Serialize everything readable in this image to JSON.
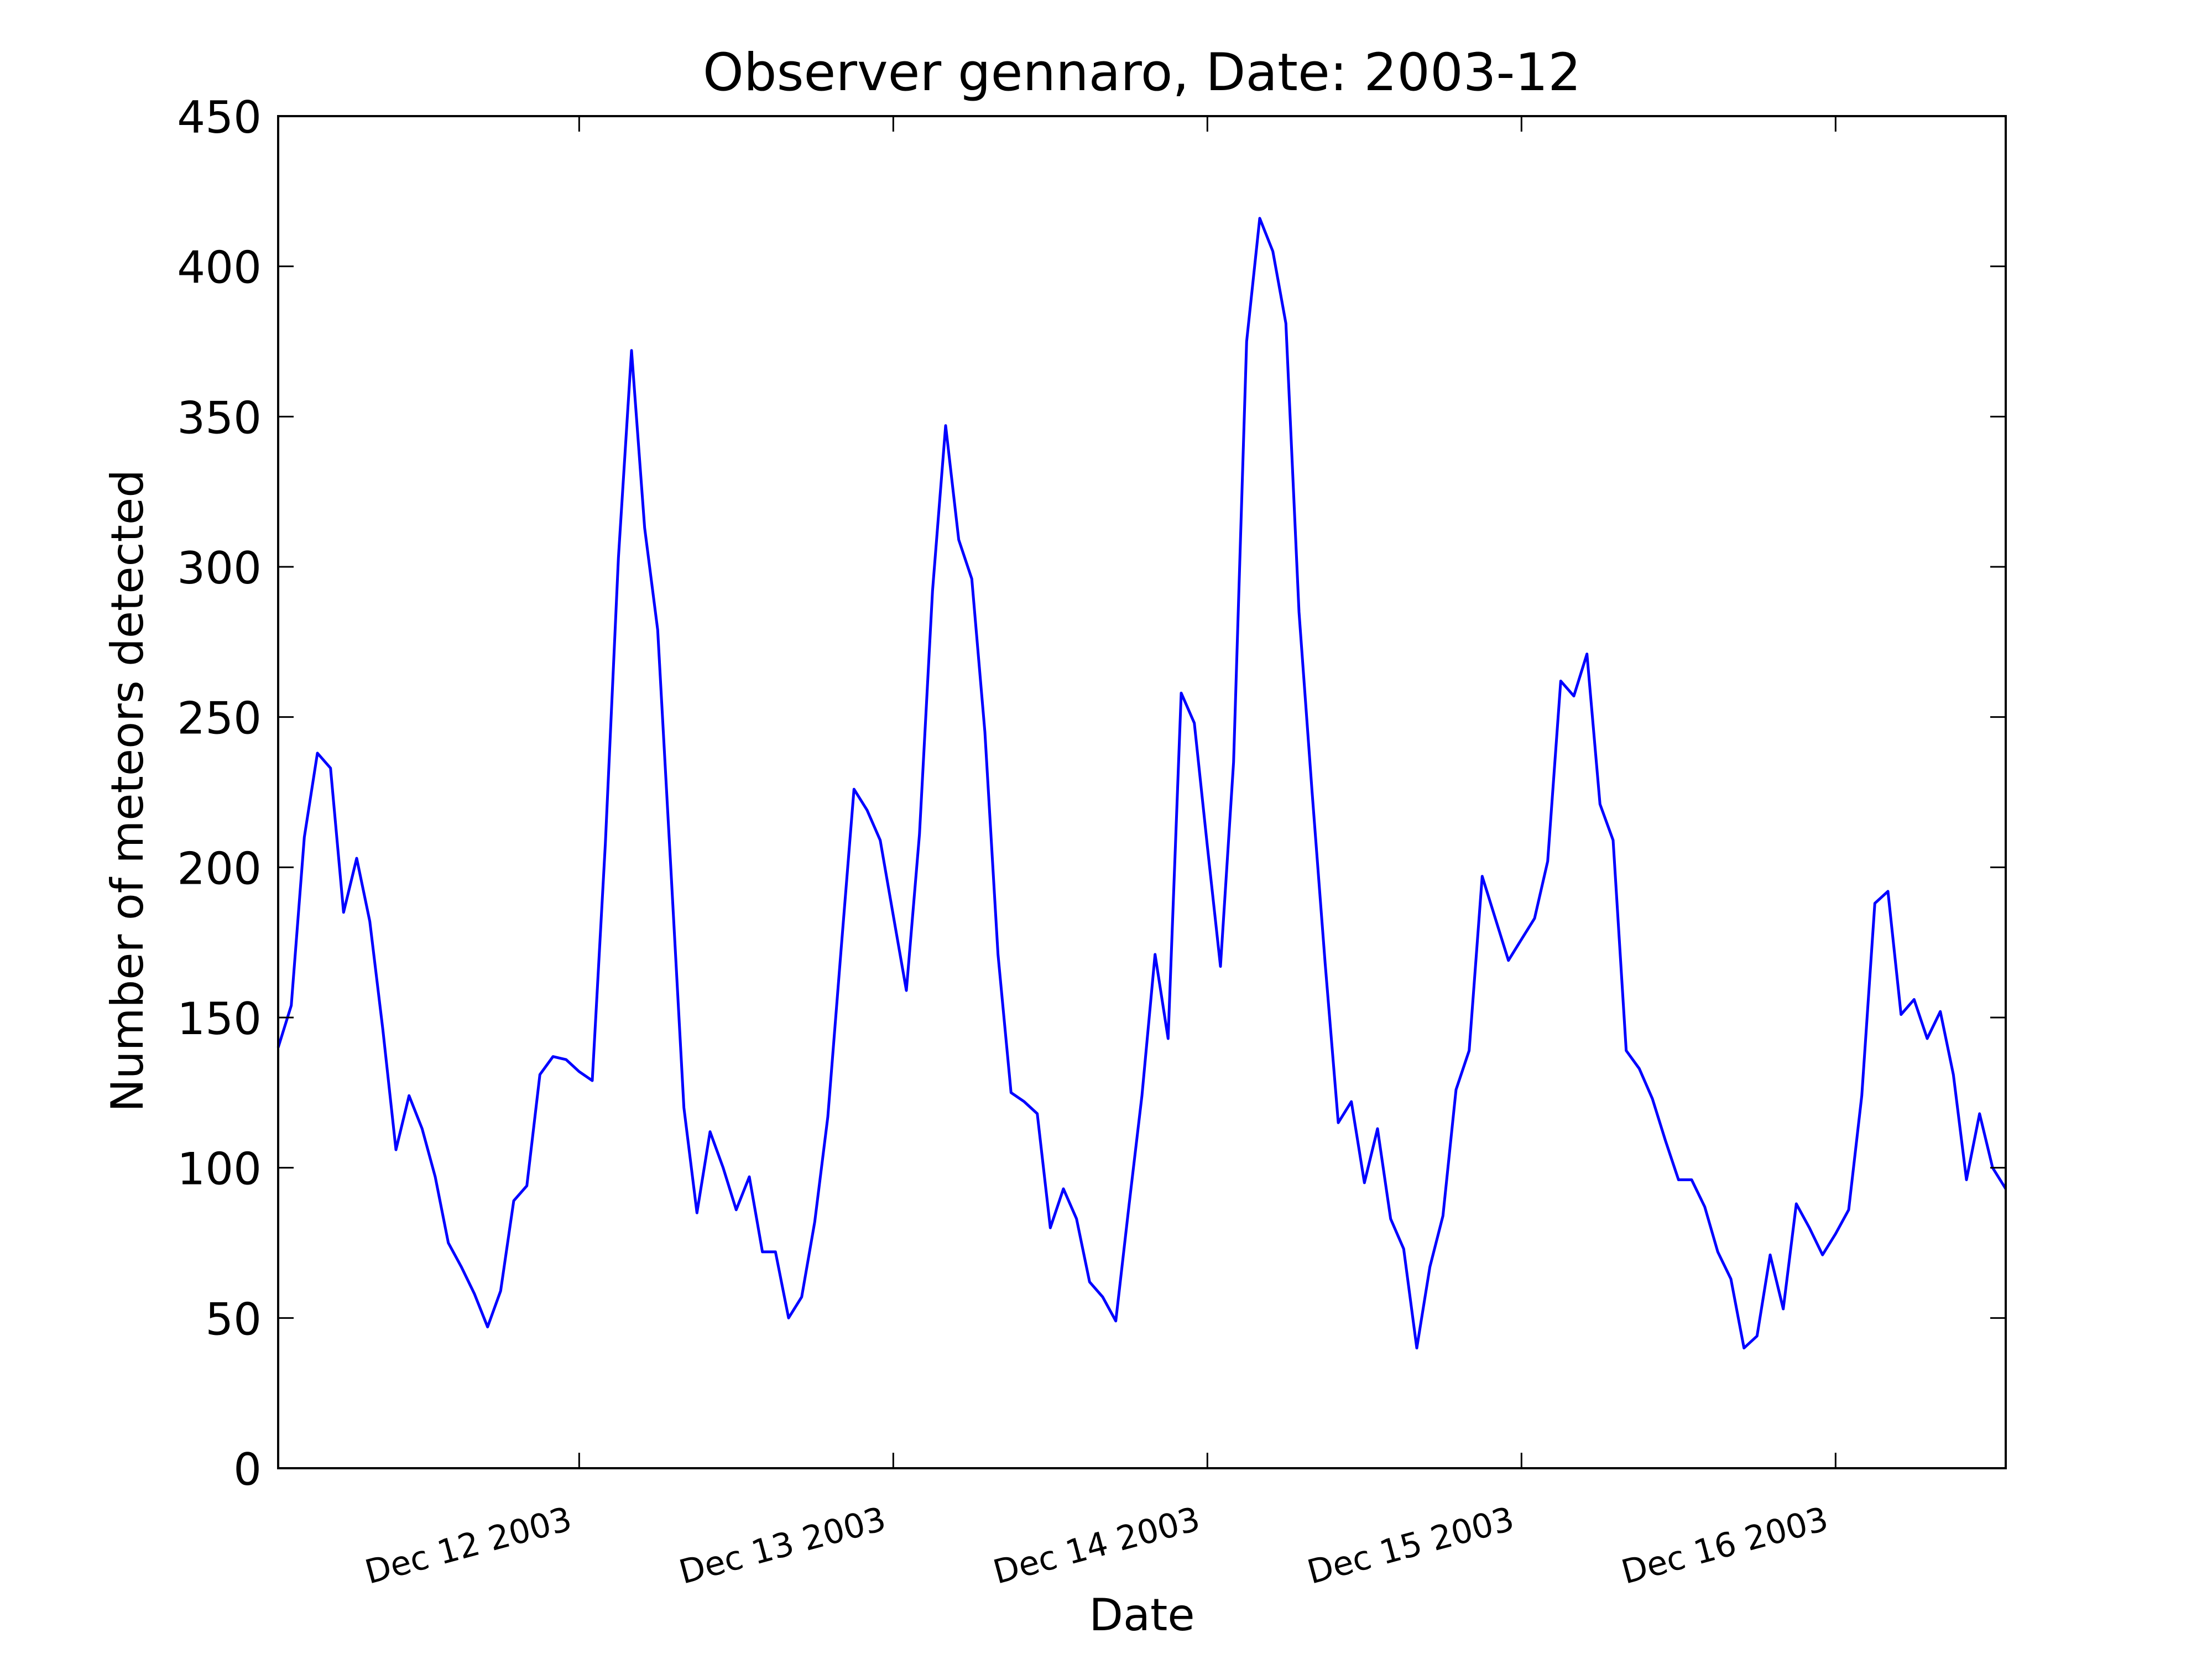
{
  "chart_data": {
    "type": "line",
    "title": "Observer gennaro, Date: 2003-12",
    "xlabel": "Date",
    "ylabel": "Number of meteors detected",
    "x_ticks": [
      "Dec 12 2003",
      "Dec 13 2003",
      "Dec 14 2003",
      "Dec 15 2003",
      "Dec 16 2003"
    ],
    "x_tick_hours": [
      24,
      48,
      72,
      96,
      120
    ],
    "x_range_hours": [
      1,
      133
    ],
    "x_start": "2003-12-11 01:00",
    "x_step_hours": 1,
    "y_ticks": [
      0,
      50,
      100,
      150,
      200,
      250,
      300,
      350,
      400,
      450
    ],
    "ylim": [
      0,
      450
    ],
    "grid": false,
    "line_color": "#0000ff",
    "series": [
      {
        "values": [
          140,
          154,
          210,
          238,
          233,
          185,
          203,
          182,
          146,
          106,
          124,
          113,
          97,
          75,
          67,
          58,
          47,
          59,
          89,
          94,
          131,
          137,
          136,
          132,
          129,
          208,
          303,
          372,
          313,
          279,
          200,
          120,
          85,
          112,
          100,
          86,
          97,
          72,
          72,
          50,
          57,
          82,
          117,
          172,
          226,
          219,
          209,
          184,
          159,
          211,
          292,
          347,
          309,
          296,
          245,
          171,
          125,
          122,
          118,
          80,
          93,
          83,
          62,
          57,
          49,
          87,
          124,
          171,
          143,
          258,
          248,
          207,
          167,
          235,
          375,
          416,
          405,
          381,
          285,
          225,
          168,
          115,
          122,
          95,
          113,
          83,
          73,
          40,
          67,
          84,
          126,
          139,
          197,
          183,
          169,
          176,
          183,
          202,
          262,
          257,
          271,
          221,
          209,
          139,
          133,
          123,
          109,
          96,
          96,
          87,
          72,
          63,
          40,
          44,
          71,
          53,
          88,
          80,
          71,
          78,
          86,
          124,
          188,
          192,
          151,
          156,
          143,
          152,
          131,
          96,
          118,
          100,
          93
        ]
      }
    ]
  }
}
